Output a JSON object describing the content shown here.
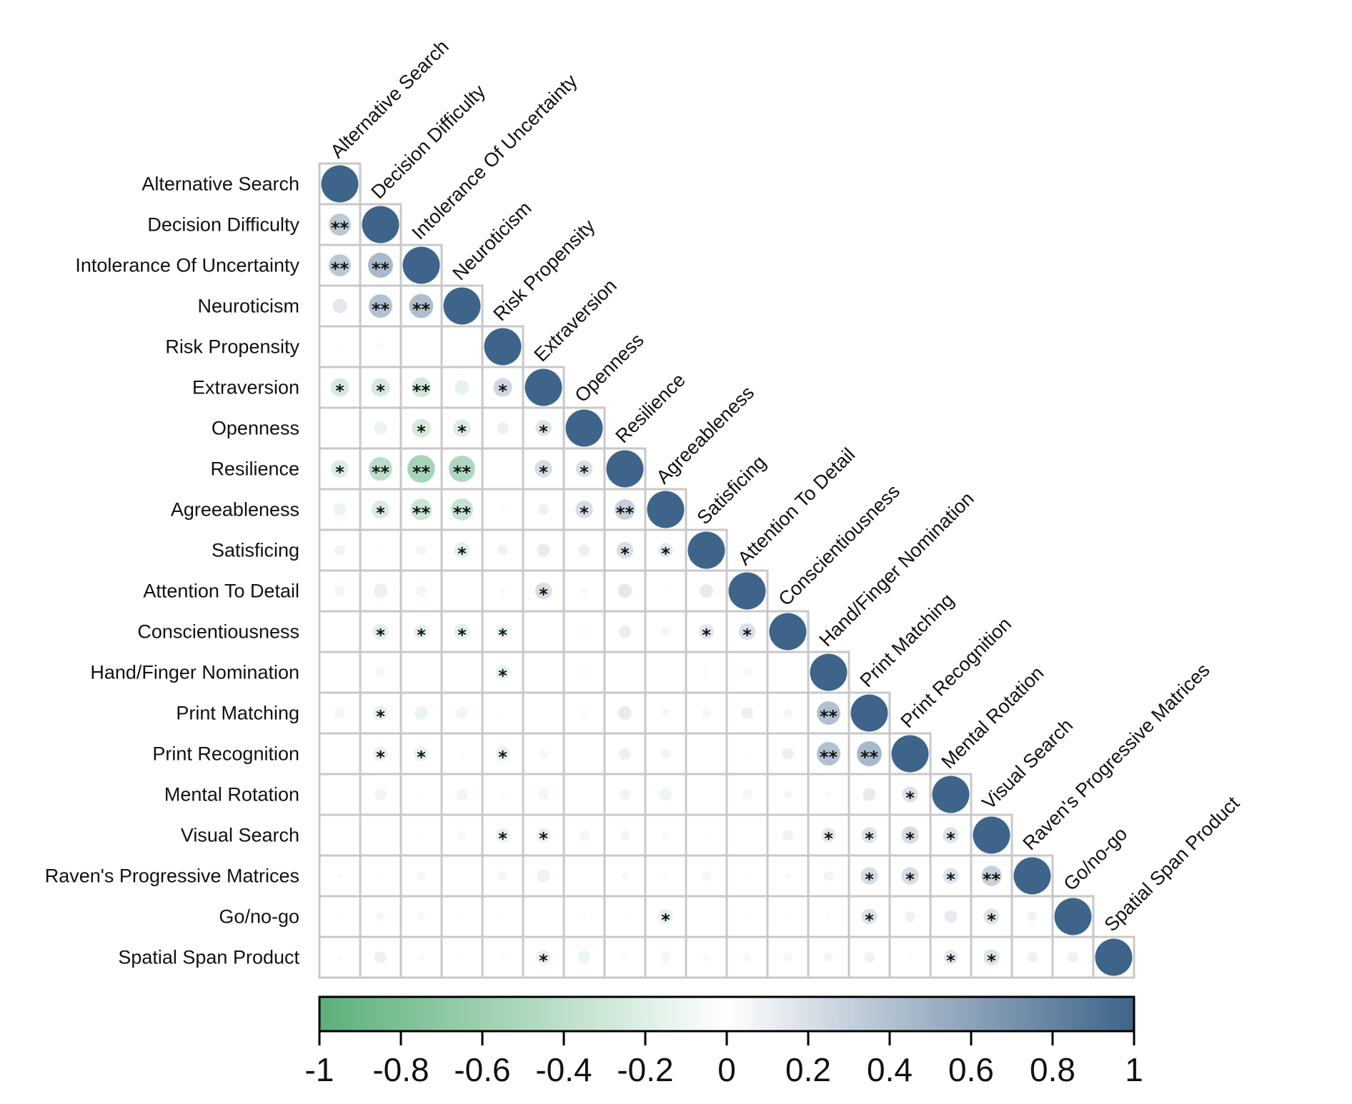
{
  "chart_data": {
    "type": "heatmap",
    "style": "correlation-matrix-lower-triangle-circles",
    "variables": [
      "Alternative Search",
      "Decision Difficulty",
      "Intolerance Of Uncertainty",
      "Neuroticism",
      "Risk Propensity",
      "Extraversion",
      "Openness",
      "Resilience",
      "Agreeableness",
      "Satisficing",
      "Attention To Detail",
      "Conscientiousness",
      "Hand/Finger Nomination",
      "Print Matching",
      "Print Recognition",
      "Mental Rotation",
      "Visual Search",
      "Raven's Progressive Matrices",
      "Go/no-go",
      "Spatial Span Product"
    ],
    "values": [
      [
        1
      ],
      [
        0.35,
        1
      ],
      [
        0.35,
        0.45,
        1
      ],
      [
        0.15,
        0.4,
        0.42,
        1
      ],
      [
        -0.03,
        -0.05,
        0.0,
        -0.01,
        1
      ],
      [
        -0.25,
        -0.25,
        -0.28,
        -0.15,
        0.25,
        1
      ],
      [
        0.0,
        -0.12,
        -0.25,
        -0.22,
        0.1,
        0.18,
        1
      ],
      [
        -0.22,
        -0.4,
        -0.55,
        -0.5,
        0.0,
        0.22,
        0.2,
        1
      ],
      [
        -0.12,
        -0.23,
        -0.33,
        -0.35,
        -0.03,
        0.08,
        0.22,
        0.3,
        1
      ],
      [
        0.08,
        -0.02,
        -0.08,
        -0.18,
        0.08,
        0.12,
        0.1,
        0.2,
        0.15,
        1
      ],
      [
        -0.08,
        -0.14,
        -0.08,
        -0.01,
        0.03,
        0.2,
        0.04,
        0.14,
        -0.02,
        0.13,
        1
      ],
      [
        0.01,
        -0.18,
        -0.16,
        -0.18,
        -0.14,
        0.01,
        -0.03,
        0.11,
        0.06,
        0.16,
        0.2,
        1
      ],
      [
        -0.01,
        -0.07,
        -0.01,
        -0.01,
        -0.15,
        0.0,
        -0.03,
        0.0,
        0.01,
        -0.03,
        0.05,
        0.01,
        1
      ],
      [
        -0.08,
        -0.15,
        -0.13,
        -0.1,
        -0.02,
        0.0,
        0.03,
        0.13,
        0.05,
        0.05,
        0.1,
        0.06,
        0.4,
        1
      ],
      [
        -0.01,
        -0.15,
        -0.15,
        -0.03,
        -0.15,
        -0.06,
        0.01,
        0.1,
        0.07,
        0.01,
        -0.02,
        0.1,
        0.4,
        0.45,
        1
      ],
      [
        0.0,
        -0.1,
        -0.03,
        -0.1,
        -0.03,
        -0.08,
        0.01,
        0.08,
        -0.11,
        0.0,
        -0.07,
        0.05,
        0.03,
        0.12,
        0.18,
        1
      ],
      [
        0.0,
        -0.01,
        -0.03,
        -0.05,
        -0.15,
        -0.15,
        -0.08,
        0.06,
        0.04,
        0.02,
        -0.01,
        0.08,
        0.15,
        0.18,
        0.22,
        0.18,
        1
      ],
      [
        0.03,
        -0.02,
        -0.06,
        -0.01,
        -0.07,
        -0.12,
        0.0,
        0.04,
        -0.04,
        -0.07,
        -0.03,
        0.04,
        0.07,
        0.22,
        0.22,
        0.18,
        0.3,
        1
      ],
      [
        -0.02,
        0.05,
        0.04,
        0.01,
        -0.02,
        0.0,
        -0.03,
        0.01,
        -0.15,
        0.01,
        -0.03,
        -0.02,
        0.03,
        0.18,
        0.08,
        0.12,
        0.18,
        0.07,
        1
      ],
      [
        0.03,
        0.1,
        0.03,
        0.01,
        -0.03,
        -0.15,
        -0.12,
        -0.04,
        -0.08,
        0.04,
        -0.05,
        -0.06,
        0.06,
        0.08,
        0.02,
        0.15,
        0.18,
        0.08,
        0.08,
        1
      ]
    ],
    "significance": [
      [
        ""
      ],
      [
        "**",
        ""
      ],
      [
        "**",
        "**",
        ""
      ],
      [
        "",
        "**",
        "**",
        ""
      ],
      [
        "",
        "",
        "",
        "",
        ""
      ],
      [
        "*",
        "*",
        "**",
        "",
        "*",
        ""
      ],
      [
        "",
        "",
        "*",
        "*",
        "",
        "*",
        ""
      ],
      [
        "*",
        "**",
        "**",
        "**",
        "",
        "*",
        "*",
        ""
      ],
      [
        "",
        "*",
        "**",
        "**",
        "",
        "",
        "*",
        "**",
        ""
      ],
      [
        "",
        "",
        "",
        "*",
        "",
        "",
        "",
        "*",
        "*",
        ""
      ],
      [
        "",
        "",
        "",
        "",
        "",
        "*",
        "",
        "",
        "",
        "",
        ""
      ],
      [
        "",
        "*",
        "*",
        "*",
        "*",
        "",
        "",
        "",
        "",
        "*",
        "*",
        ""
      ],
      [
        "",
        "",
        "",
        "",
        "*",
        "",
        "",
        "",
        "",
        "",
        "",
        "",
        ""
      ],
      [
        "",
        "*",
        "",
        "",
        "",
        "",
        "",
        "",
        "",
        "",
        "",
        "",
        "**",
        ""
      ],
      [
        "",
        "*",
        "*",
        "",
        "*",
        "",
        "",
        "",
        "",
        "",
        "",
        "",
        "**",
        "**",
        ""
      ],
      [
        "",
        "",
        "",
        "",
        "",
        "",
        "",
        "",
        "",
        "",
        "",
        "",
        "",
        "",
        "*",
        ""
      ],
      [
        "",
        "",
        "",
        "",
        "*",
        "*",
        "",
        "",
        "",
        "",
        "",
        "",
        "*",
        "*",
        "*",
        "*",
        ""
      ],
      [
        "",
        "",
        "",
        "",
        "",
        "",
        "",
        "",
        "",
        "",
        "",
        "",
        "",
        "*",
        "*",
        "*",
        "**",
        ""
      ],
      [
        "",
        "",
        "",
        "",
        "",
        "",
        "",
        "",
        "*",
        "",
        "",
        "",
        "",
        "*",
        "",
        "",
        "*",
        "",
        ""
      ],
      [
        "",
        "",
        "",
        "",
        "",
        "*",
        "",
        "",
        "",
        "",
        "",
        "",
        "",
        "",
        "",
        "*",
        "*",
        "",
        "",
        ""
      ]
    ],
    "colorbar": {
      "ticks": [
        "-1",
        "-0.8",
        "-0.6",
        "-0.4",
        "-0.2",
        "0",
        "0.2",
        "0.4",
        "0.6",
        "0.8",
        "1"
      ],
      "range": [
        -1,
        1
      ]
    },
    "colors": {
      "negative": "#5bb07b",
      "zero": "#ffffff",
      "positive": "#3e6489",
      "grid": "#c8c8c8"
    }
  }
}
